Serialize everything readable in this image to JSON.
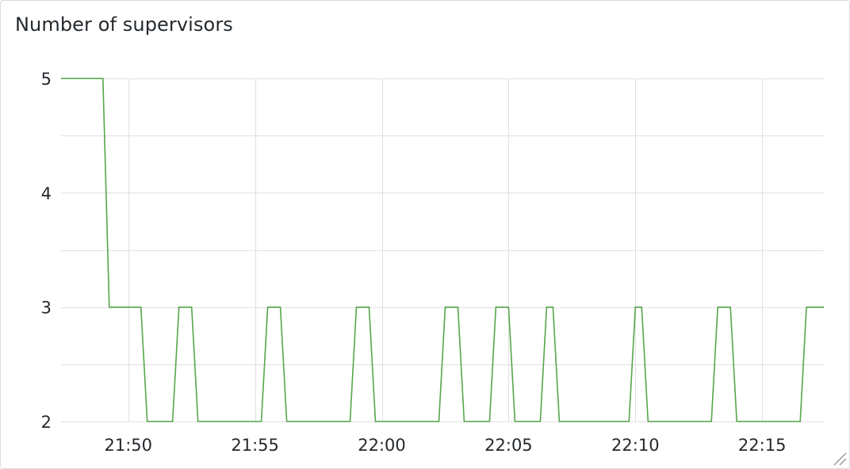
{
  "panel": {
    "title": "Number of supervisors"
  },
  "colors": {
    "series": "#56a64b",
    "grid": "#e0e0e0",
    "text": "#24292e"
  },
  "chart_data": {
    "type": "line",
    "title": "Number of supervisors",
    "xlabel": "",
    "ylabel": "",
    "grid": true,
    "x_unit": "HH:MM",
    "xlim": [
      "21:47:21",
      "22:17:26"
    ],
    "ylim": [
      2,
      5
    ],
    "y_ticks": [
      2,
      3,
      4,
      5
    ],
    "x_ticks": [
      "21:50",
      "21:55",
      "22:00",
      "22:05",
      "22:10",
      "22:15"
    ],
    "series": [
      {
        "name": "",
        "points": [
          [
            "21:47:21",
            5
          ],
          [
            "21:49:00",
            5
          ],
          [
            "21:49:15",
            3
          ],
          [
            "21:50:30",
            3
          ],
          [
            "21:50:45",
            2
          ],
          [
            "21:51:45",
            2
          ],
          [
            "21:52:00",
            3
          ],
          [
            "21:52:30",
            3
          ],
          [
            "21:52:45",
            2
          ],
          [
            "21:55:15",
            2
          ],
          [
            "21:55:30",
            3
          ],
          [
            "21:56:00",
            3
          ],
          [
            "21:56:15",
            2
          ],
          [
            "21:58:45",
            2
          ],
          [
            "21:59:00",
            3
          ],
          [
            "21:59:30",
            3
          ],
          [
            "21:59:45",
            2
          ],
          [
            "22:02:15",
            2
          ],
          [
            "22:02:30",
            3
          ],
          [
            "22:03:00",
            3
          ],
          [
            "22:03:15",
            2
          ],
          [
            "22:04:15",
            2
          ],
          [
            "22:04:30",
            3
          ],
          [
            "22:05:00",
            3
          ],
          [
            "22:05:15",
            2
          ],
          [
            "22:06:15",
            2
          ],
          [
            "22:06:30",
            3
          ],
          [
            "22:06:45",
            3
          ],
          [
            "22:07:00",
            2
          ],
          [
            "22:09:45",
            2
          ],
          [
            "22:10:00",
            3
          ],
          [
            "22:10:15",
            3
          ],
          [
            "22:10:30",
            2
          ],
          [
            "22:13:00",
            2
          ],
          [
            "22:13:15",
            3
          ],
          [
            "22:13:45",
            3
          ],
          [
            "22:14:00",
            2
          ],
          [
            "22:16:30",
            2
          ],
          [
            "22:16:45",
            3
          ],
          [
            "22:17:26",
            3
          ]
        ]
      }
    ]
  }
}
